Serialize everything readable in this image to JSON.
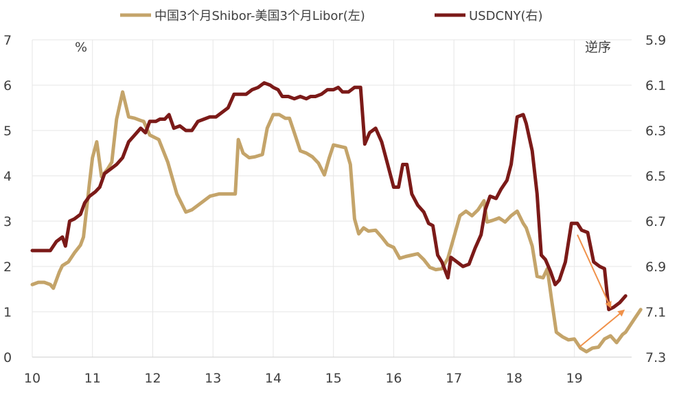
{
  "chart_data": {
    "type": "line",
    "legend": [
      {
        "name": "中国3个月Shibor-美国3个月Libor(左)",
        "color": "#c4a46a"
      },
      {
        "name": "USDCNY(右)",
        "color": "#7b1a18"
      }
    ],
    "left_axis": {
      "unit_label": "%",
      "ylim": [
        0,
        7
      ],
      "ticks": [
        "0",
        "1",
        "2",
        "3",
        "4",
        "5",
        "6",
        "7"
      ]
    },
    "right_axis": {
      "note": "逆序",
      "ylim": [
        5.9,
        7.3
      ],
      "reversed": true,
      "ticks": [
        "5.9",
        "6.1",
        "6.3",
        "6.5",
        "6.7",
        "6.9",
        "7.1",
        "7.3"
      ]
    },
    "x_axis": {
      "xlim": [
        10,
        19.95
      ],
      "ticks": [
        "10",
        "11",
        "12",
        "13",
        "14",
        "15",
        "16",
        "17",
        "18",
        "19"
      ]
    },
    "grid": true,
    "series": [
      {
        "name": "中国3个月Shibor-美国3个月Libor(左)",
        "axis": "left",
        "color": "#c4a46a",
        "points": [
          [
            10.0,
            1.6
          ],
          [
            10.1,
            1.65
          ],
          [
            10.2,
            1.65
          ],
          [
            10.3,
            1.6
          ],
          [
            10.35,
            1.52
          ],
          [
            10.45,
            1.88
          ],
          [
            10.5,
            2.02
          ],
          [
            10.6,
            2.1
          ],
          [
            10.7,
            2.3
          ],
          [
            10.8,
            2.47
          ],
          [
            10.85,
            2.65
          ],
          [
            10.95,
            3.85
          ],
          [
            11.0,
            4.4
          ],
          [
            11.07,
            4.75
          ],
          [
            11.15,
            3.98
          ],
          [
            11.25,
            4.15
          ],
          [
            11.32,
            4.3
          ],
          [
            11.4,
            5.25
          ],
          [
            11.5,
            5.85
          ],
          [
            11.6,
            5.3
          ],
          [
            11.7,
            5.27
          ],
          [
            11.8,
            5.22
          ],
          [
            11.85,
            5.2
          ],
          [
            11.95,
            4.9
          ],
          [
            12.1,
            4.8
          ],
          [
            12.25,
            4.3
          ],
          [
            12.4,
            3.6
          ],
          [
            12.55,
            3.2
          ],
          [
            12.65,
            3.25
          ],
          [
            12.8,
            3.4
          ],
          [
            12.95,
            3.55
          ],
          [
            13.1,
            3.6
          ],
          [
            13.2,
            3.6
          ],
          [
            13.3,
            3.6
          ],
          [
            13.37,
            3.6
          ],
          [
            13.42,
            4.8
          ],
          [
            13.5,
            4.5
          ],
          [
            13.6,
            4.4
          ],
          [
            13.7,
            4.42
          ],
          [
            13.82,
            4.47
          ],
          [
            13.9,
            5.05
          ],
          [
            14.0,
            5.35
          ],
          [
            14.1,
            5.35
          ],
          [
            14.2,
            5.27
          ],
          [
            14.27,
            5.27
          ],
          [
            14.35,
            4.95
          ],
          [
            14.45,
            4.55
          ],
          [
            14.55,
            4.5
          ],
          [
            14.65,
            4.42
          ],
          [
            14.75,
            4.28
          ],
          [
            14.85,
            4.02
          ],
          [
            14.93,
            4.4
          ],
          [
            15.0,
            4.68
          ],
          [
            15.1,
            4.65
          ],
          [
            15.2,
            4.62
          ],
          [
            15.28,
            4.25
          ],
          [
            15.35,
            3.05
          ],
          [
            15.42,
            2.72
          ],
          [
            15.5,
            2.85
          ],
          [
            15.58,
            2.78
          ],
          [
            15.7,
            2.8
          ],
          [
            15.8,
            2.65
          ],
          [
            15.9,
            2.48
          ],
          [
            16.0,
            2.42
          ],
          [
            16.1,
            2.18
          ],
          [
            16.2,
            2.22
          ],
          [
            16.3,
            2.25
          ],
          [
            16.4,
            2.28
          ],
          [
            16.5,
            2.15
          ],
          [
            16.6,
            1.98
          ],
          [
            16.7,
            1.93
          ],
          [
            16.8,
            1.95
          ],
          [
            16.9,
            2.18
          ],
          [
            17.0,
            2.65
          ],
          [
            17.1,
            3.12
          ],
          [
            17.2,
            3.22
          ],
          [
            17.3,
            3.12
          ],
          [
            17.4,
            3.25
          ],
          [
            17.5,
            3.45
          ],
          [
            17.55,
            2.98
          ],
          [
            17.65,
            3.02
          ],
          [
            17.75,
            3.07
          ],
          [
            17.85,
            2.98
          ],
          [
            17.95,
            3.12
          ],
          [
            18.05,
            3.22
          ],
          [
            18.15,
            2.95
          ],
          [
            18.2,
            2.85
          ],
          [
            18.3,
            2.45
          ],
          [
            18.38,
            1.78
          ],
          [
            18.48,
            1.75
          ],
          [
            18.55,
            1.95
          ],
          [
            18.62,
            1.28
          ],
          [
            18.7,
            0.55
          ],
          [
            18.8,
            0.45
          ],
          [
            18.9,
            0.38
          ],
          [
            19.0,
            0.4
          ],
          [
            19.1,
            0.2
          ],
          [
            19.2,
            0.12
          ],
          [
            19.3,
            0.2
          ],
          [
            19.4,
            0.22
          ],
          [
            19.5,
            0.4
          ],
          [
            19.6,
            0.47
          ],
          [
            19.7,
            0.32
          ],
          [
            19.8,
            0.5
          ],
          [
            19.85,
            0.55
          ],
          [
            19.9,
            0.65
          ],
          [
            20.0,
            0.85
          ],
          [
            20.1,
            1.05
          ]
        ]
      },
      {
        "name": "USDCNY(右)",
        "axis": "right",
        "color": "#7b1a18",
        "points": [
          [
            10.0,
            6.83
          ],
          [
            10.1,
            6.83
          ],
          [
            10.2,
            6.83
          ],
          [
            10.3,
            6.83
          ],
          [
            10.4,
            6.79
          ],
          [
            10.5,
            6.77
          ],
          [
            10.55,
            6.81
          ],
          [
            10.62,
            6.7
          ],
          [
            10.7,
            6.69
          ],
          [
            10.8,
            6.67
          ],
          [
            10.87,
            6.62
          ],
          [
            10.95,
            6.59
          ],
          [
            11.05,
            6.57
          ],
          [
            11.12,
            6.55
          ],
          [
            11.2,
            6.49
          ],
          [
            11.3,
            6.47
          ],
          [
            11.4,
            6.45
          ],
          [
            11.5,
            6.42
          ],
          [
            11.6,
            6.35
          ],
          [
            11.7,
            6.32
          ],
          [
            11.8,
            6.29
          ],
          [
            11.88,
            6.31
          ],
          [
            11.95,
            6.26
          ],
          [
            12.05,
            6.26
          ],
          [
            12.12,
            6.25
          ],
          [
            12.2,
            6.25
          ],
          [
            12.27,
            6.23
          ],
          [
            12.35,
            6.29
          ],
          [
            12.45,
            6.28
          ],
          [
            12.55,
            6.3
          ],
          [
            12.65,
            6.3
          ],
          [
            12.75,
            6.26
          ],
          [
            12.85,
            6.25
          ],
          [
            12.95,
            6.24
          ],
          [
            13.05,
            6.24
          ],
          [
            13.15,
            6.22
          ],
          [
            13.25,
            6.2
          ],
          [
            13.35,
            6.14
          ],
          [
            13.45,
            6.14
          ],
          [
            13.55,
            6.14
          ],
          [
            13.65,
            6.12
          ],
          [
            13.75,
            6.11
          ],
          [
            13.85,
            6.09
          ],
          [
            13.95,
            6.1
          ],
          [
            14.0,
            6.11
          ],
          [
            14.08,
            6.12
          ],
          [
            14.15,
            6.15
          ],
          [
            14.25,
            6.15
          ],
          [
            14.35,
            6.16
          ],
          [
            14.45,
            6.15
          ],
          [
            14.55,
            6.16
          ],
          [
            14.62,
            6.15
          ],
          [
            14.7,
            6.15
          ],
          [
            14.8,
            6.14
          ],
          [
            14.9,
            6.12
          ],
          [
            15.0,
            6.12
          ],
          [
            15.08,
            6.11
          ],
          [
            15.15,
            6.13
          ],
          [
            15.25,
            6.13
          ],
          [
            15.35,
            6.11
          ],
          [
            15.45,
            6.11
          ],
          [
            15.52,
            6.36
          ],
          [
            15.6,
            6.31
          ],
          [
            15.7,
            6.29
          ],
          [
            15.8,
            6.35
          ],
          [
            15.9,
            6.45
          ],
          [
            16.0,
            6.55
          ],
          [
            16.08,
            6.55
          ],
          [
            16.15,
            6.45
          ],
          [
            16.22,
            6.45
          ],
          [
            16.3,
            6.58
          ],
          [
            16.4,
            6.63
          ],
          [
            16.5,
            6.66
          ],
          [
            16.58,
            6.71
          ],
          [
            16.65,
            6.72
          ],
          [
            16.73,
            6.85
          ],
          [
            16.8,
            6.88
          ],
          [
            16.9,
            6.95
          ],
          [
            16.95,
            6.86
          ],
          [
            17.05,
            6.88
          ],
          [
            17.15,
            6.9
          ],
          [
            17.25,
            6.89
          ],
          [
            17.35,
            6.82
          ],
          [
            17.45,
            6.76
          ],
          [
            17.52,
            6.65
          ],
          [
            17.6,
            6.59
          ],
          [
            17.7,
            6.6
          ],
          [
            17.78,
            6.56
          ],
          [
            17.88,
            6.52
          ],
          [
            17.95,
            6.45
          ],
          [
            18.05,
            6.24
          ],
          [
            18.15,
            6.23
          ],
          [
            18.2,
            6.27
          ],
          [
            18.3,
            6.39
          ],
          [
            18.38,
            6.58
          ],
          [
            18.45,
            6.85
          ],
          [
            18.52,
            6.87
          ],
          [
            18.6,
            6.92
          ],
          [
            18.68,
            6.98
          ],
          [
            18.75,
            6.96
          ],
          [
            18.85,
            6.88
          ],
          [
            18.95,
            6.71
          ],
          [
            19.05,
            6.71
          ],
          [
            19.12,
            6.74
          ],
          [
            19.22,
            6.75
          ],
          [
            19.32,
            6.88
          ],
          [
            19.42,
            6.9
          ],
          [
            19.5,
            6.91
          ],
          [
            19.57,
            7.09
          ],
          [
            19.65,
            7.08
          ],
          [
            19.75,
            7.06
          ],
          [
            19.85,
            7.03
          ]
        ]
      }
    ],
    "annotations": [
      {
        "type": "arrow",
        "axis": "right",
        "from": [
          19.05,
          6.76
        ],
        "to": [
          19.6,
          7.08
        ],
        "color": "#f0914a"
      },
      {
        "type": "arrow",
        "axis": "left",
        "from": [
          19.08,
          0.22
        ],
        "to": [
          19.82,
          1.03
        ],
        "color": "#f0914a"
      }
    ]
  }
}
